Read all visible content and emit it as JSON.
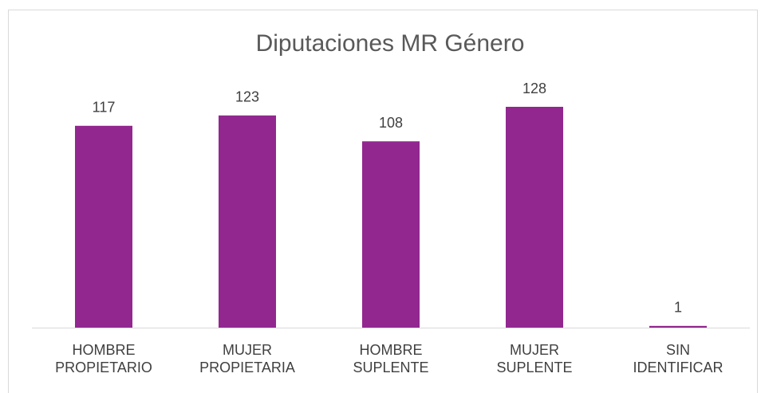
{
  "chart_data": {
    "type": "bar",
    "title": "Diputaciones MR Género",
    "categories": [
      "HOMBRE PROPIETARIO",
      "MUJER PROPIETARIA",
      "HOMBRE SUPLENTE",
      "MUJER SUPLENTE",
      "SIN IDENTIFICAR"
    ],
    "values": [
      117,
      123,
      108,
      128,
      1
    ],
    "color": "#92278f"
  }
}
